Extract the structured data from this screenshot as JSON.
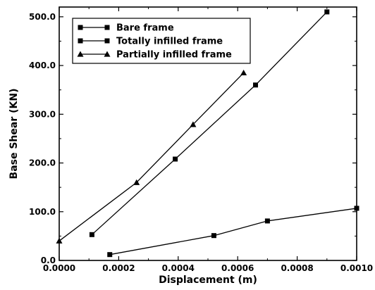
{
  "chart_data": {
    "type": "line",
    "xlabel": "Displacement (m)",
    "ylabel": "Base Shear (KN)",
    "xlim": [
      0,
      0.001
    ],
    "ylim": [
      0,
      520
    ],
    "x_ticks": [
      0.0,
      0.0002,
      0.0004,
      0.0006,
      0.0008,
      0.001
    ],
    "x_tick_labels": [
      "0.0000",
      "0.0002",
      "0.0004",
      "0.0006",
      "0.0008",
      "0.0010"
    ],
    "y_ticks": [
      0,
      100,
      200,
      300,
      400,
      500
    ],
    "y_tick_labels": [
      "0.0",
      "100.0",
      "200.0",
      "300.0",
      "400.0",
      "500.0"
    ],
    "grid": false,
    "legend_position": "top-left",
    "series": [
      {
        "name": "Bare frame",
        "marker": "square",
        "points": [
          [
            0.00017,
            12
          ],
          [
            0.00052,
            51
          ],
          [
            0.0007,
            81
          ],
          [
            0.001,
            107
          ]
        ]
      },
      {
        "name": "Totally infilled frame",
        "marker": "square",
        "points": [
          [
            0.00011,
            53
          ],
          [
            0.00039,
            208
          ],
          [
            0.00066,
            360
          ],
          [
            0.0009,
            510
          ]
        ]
      },
      {
        "name": "Partially infilled frame",
        "marker": "triangle",
        "points": [
          [
            0.0,
            40
          ],
          [
            0.00026,
            160
          ],
          [
            0.00045,
            279
          ],
          [
            0.00062,
            385
          ]
        ]
      }
    ]
  }
}
